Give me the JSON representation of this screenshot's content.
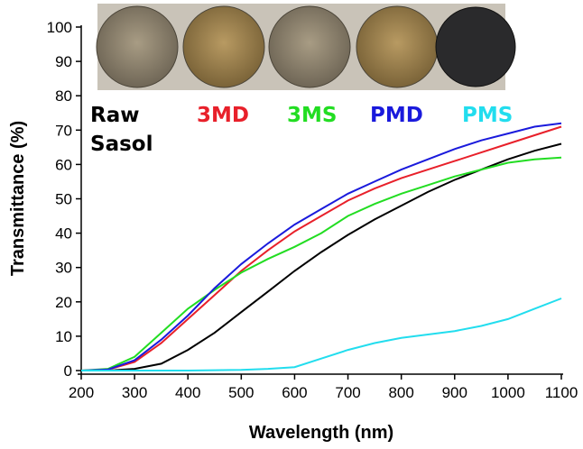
{
  "chart_data": {
    "type": "line",
    "xlabel": "Wavelength (nm)",
    "ylabel": "Transmittance (%)",
    "xlim": [
      200,
      1100
    ],
    "ylim": [
      0,
      100
    ],
    "xticks": [
      200,
      300,
      400,
      500,
      600,
      700,
      800,
      900,
      1000,
      1100
    ],
    "yticks": [
      0,
      10,
      20,
      30,
      40,
      50,
      60,
      70,
      80,
      90,
      100
    ],
    "grid": false,
    "x": [
      200,
      250,
      300,
      350,
      400,
      450,
      500,
      550,
      600,
      650,
      700,
      750,
      800,
      850,
      900,
      950,
      1000,
      1050,
      1100
    ],
    "series": [
      {
        "name": "Raw Sasol",
        "color": "#000000",
        "values": [
          0,
          0,
          0.5,
          2,
          6,
          11,
          17,
          23,
          29,
          34.5,
          39.5,
          44,
          48,
          52,
          55.5,
          58.5,
          61.5,
          64,
          66
        ]
      },
      {
        "name": "3MD",
        "color": "#e8202a",
        "values": [
          0,
          0.3,
          2.5,
          8,
          15,
          22,
          29,
          35,
          40.5,
          45,
          49.5,
          53,
          56,
          58.5,
          61,
          63.5,
          66,
          68.5,
          71
        ]
      },
      {
        "name": "3MS",
        "color": "#22dd22",
        "values": [
          0,
          0.5,
          4,
          11,
          18,
          23.5,
          28.5,
          32.5,
          36,
          40,
          45,
          48.5,
          51.5,
          54,
          56.5,
          58.5,
          60.5,
          61.5,
          62
        ]
      },
      {
        "name": "PMD",
        "color": "#1a1adc",
        "values": [
          0,
          0.3,
          3,
          9,
          16,
          24,
          31,
          37,
          42.5,
          47,
          51.5,
          55,
          58.5,
          61.5,
          64.5,
          67,
          69,
          71,
          72
        ]
      },
      {
        "name": "PMS",
        "color": "#22ddee",
        "values": [
          0,
          0,
          0,
          0,
          0,
          0.1,
          0.2,
          0.5,
          1,
          3.5,
          6,
          8,
          9.5,
          10.5,
          11.5,
          13,
          15,
          18,
          21
        ]
      }
    ]
  }
}
